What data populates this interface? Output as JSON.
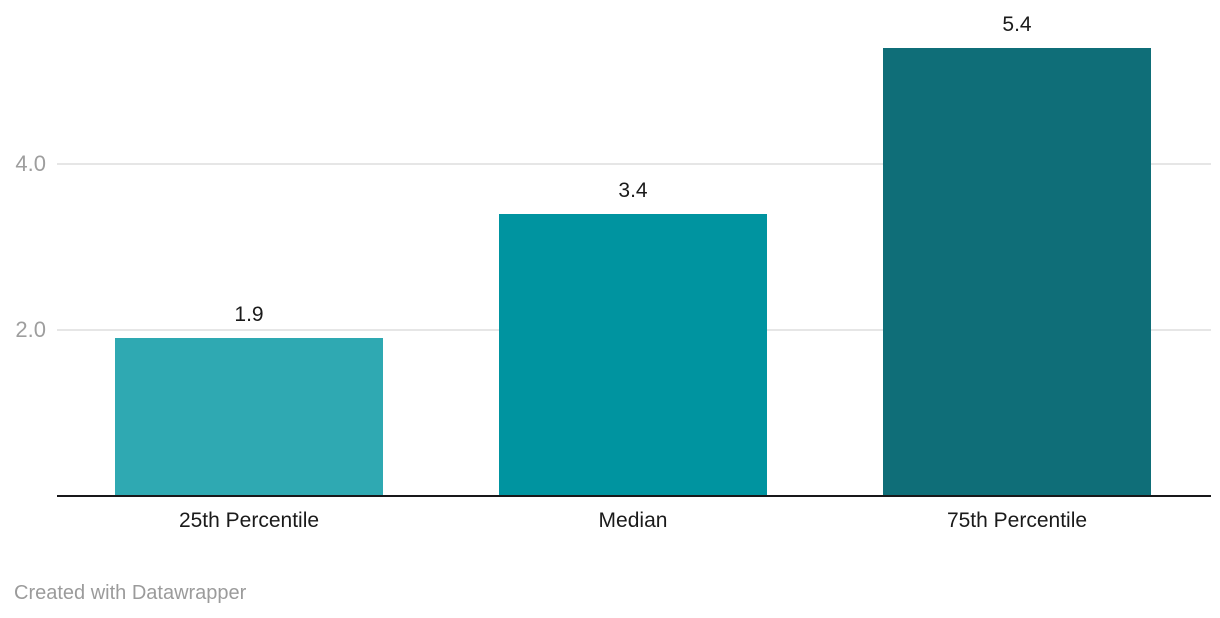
{
  "chart_data": {
    "type": "bar",
    "title": "",
    "xlabel": "",
    "ylabel": "",
    "categories": [
      "25th Percentile",
      "Median",
      "75th Percentile"
    ],
    "values": [
      1.9,
      3.4,
      5.4
    ],
    "value_labels": [
      "1.9",
      "3.4",
      "5.4"
    ],
    "bar_colors": [
      "#2fa9b2",
      "#0094a0",
      "#0f6e78"
    ],
    "yticks": [
      {
        "value": 2.0,
        "label": "2.0"
      },
      {
        "value": 4.0,
        "label": "4.0"
      }
    ],
    "ylim": [
      0,
      6
    ],
    "grid": true,
    "legend": "none"
  },
  "footer": {
    "attribution": "Created with Datawrapper"
  },
  "colors": {
    "background": "#ffffff",
    "axis_line": "#18181a",
    "gridline": "#e6e6e6",
    "tick_label": "#9e9e9e",
    "value_label": "#1a1a1a",
    "category_label": "#1a1a1a",
    "footer_text": "#9b9b9b"
  }
}
